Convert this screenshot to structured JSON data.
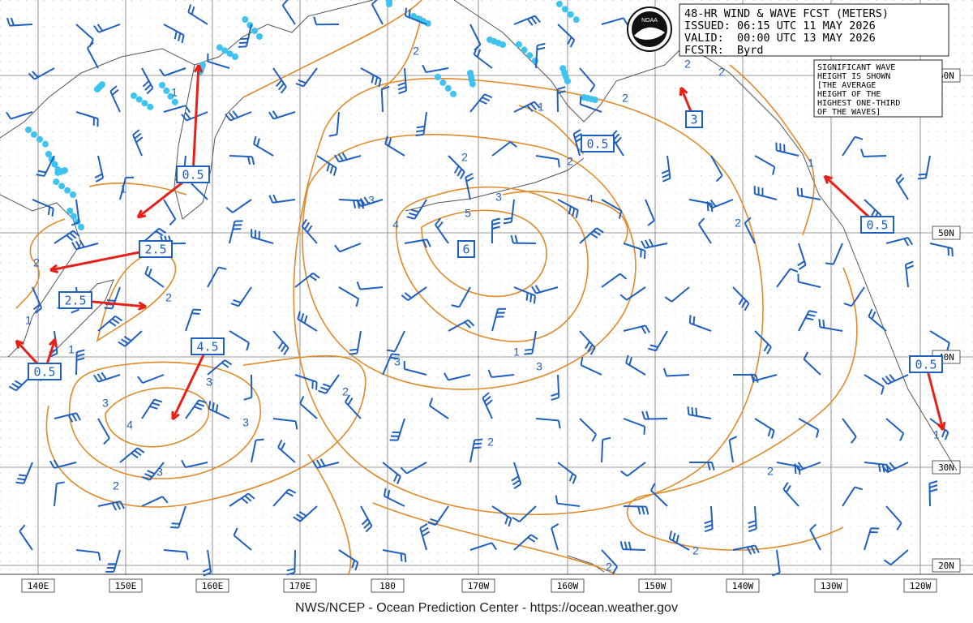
{
  "header": {
    "lines": [
      "48-HR WIND & WAVE FCST (METERS)",
      "ISSUED: 06:15 UTC 11 MAY 2026",
      "VALID:  00:00 UTC 13 MAY 2026",
      "FCSTR:  Byrd"
    ]
  },
  "logo": "NOAA",
  "note": {
    "lines": [
      "SIGNIFICANT WAVE",
      "HEIGHT IS SHOWN",
      "[THE AVERAGE",
      "HEIGHT OF THE",
      "HIGHEST ONE-THIRD",
      "OF THE WAVES]"
    ]
  },
  "longitude_labels": [
    "140E",
    "150E",
    "160E",
    "170E",
    "180",
    "170W",
    "160W",
    "150W",
    "140W",
    "130W",
    "120W"
  ],
  "latitude_labels": [
    "60N",
    "50N",
    "40N",
    "30N",
    "20N"
  ],
  "wave_boxes": [
    0.5,
    2.5,
    2.5,
    0.5,
    4.5,
    6,
    3,
    0.5,
    0.5,
    0.5
  ],
  "contour_labels": [
    1,
    1,
    2,
    1,
    1,
    2,
    3,
    4,
    3,
    3,
    3,
    2,
    2,
    3,
    3,
    4,
    5,
    3,
    2,
    1,
    2,
    2,
    4,
    2,
    1,
    2,
    2,
    2,
    1,
    3,
    2,
    2,
    2,
    2,
    1
  ],
  "footer": "NWS/NCEP - Ocean Prediction Center - https://ocean.weather.gov"
}
